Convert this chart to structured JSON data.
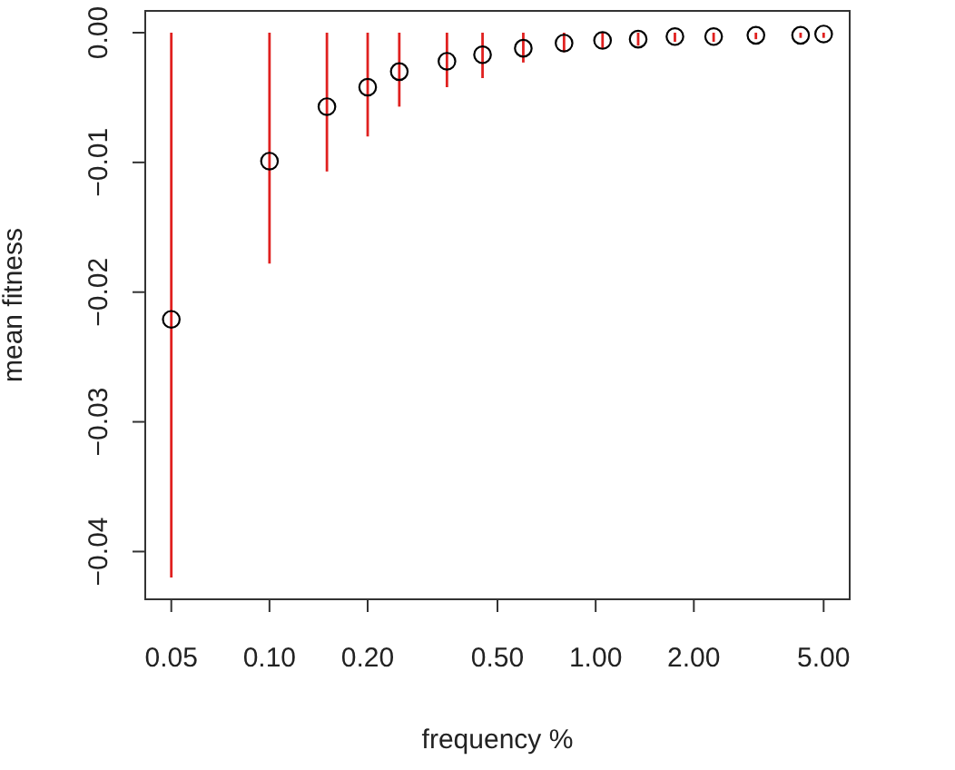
{
  "chart_data": {
    "type": "scatter",
    "xlabel": "frequency %",
    "ylabel": "mean fitness",
    "log": "x",
    "marker": "circle",
    "grid": false,
    "x": [
      0.05,
      0.1,
      0.15,
      0.2,
      0.25,
      0.35,
      0.45,
      0.6,
      0.8,
      1.05,
      1.35,
      1.75,
      2.3,
      3.1,
      4.25,
      5.0
    ],
    "series": [
      {
        "color": "#000000",
        "values": [
          -0.0221,
          -0.0099,
          -0.0057,
          -0.0042,
          -0.003,
          -0.0022,
          -0.0017,
          -0.0012,
          -0.0008,
          -0.0006,
          -0.0005,
          -0.0003,
          -0.0003,
          -0.0002,
          -0.0002,
          -0.0001
        ],
        "errors": [
          [
            -0.042,
            0
          ],
          [
            -0.0178,
            0
          ],
          [
            -0.0107,
            0
          ],
          [
            -0.008,
            0
          ],
          [
            -0.0057,
            0
          ],
          [
            -0.0042,
            0
          ],
          [
            -0.0035,
            0
          ],
          [
            -0.0023,
            0
          ],
          [
            -0.0015,
            0
          ],
          [
            -0.0012,
            0
          ],
          [
            -0.001,
            0
          ],
          [
            -0.0007,
            0
          ],
          [
            -0.0007,
            0
          ],
          [
            -0.0005,
            0
          ],
          [
            -0.0004,
            0
          ],
          [
            -0.0004,
            0
          ]
        ]
      }
    ],
    "xlim": [
      0.0416,
      6.01
    ],
    "ylim": [
      -0.04368,
      0.00168
    ],
    "xticks": [
      {
        "value": 0.05,
        "label": "0.05"
      },
      {
        "value": 0.1,
        "label": "0.10"
      },
      {
        "value": 0.2,
        "label": "0.20"
      },
      {
        "value": 0.5,
        "label": "0.50"
      },
      {
        "value": 1,
        "label": "1.00"
      },
      {
        "value": 2,
        "label": "2.00"
      },
      {
        "value": 5,
        "label": "5.00"
      }
    ],
    "yticks": [
      {
        "value": -0.04,
        "label": "−0.04"
      },
      {
        "value": -0.03,
        "label": "−0.03"
      },
      {
        "value": -0.02,
        "label": "−0.02"
      },
      {
        "value": -0.01,
        "label": "−0.01"
      },
      {
        "value": 0,
        "label": "0.00"
      }
    ]
  }
}
